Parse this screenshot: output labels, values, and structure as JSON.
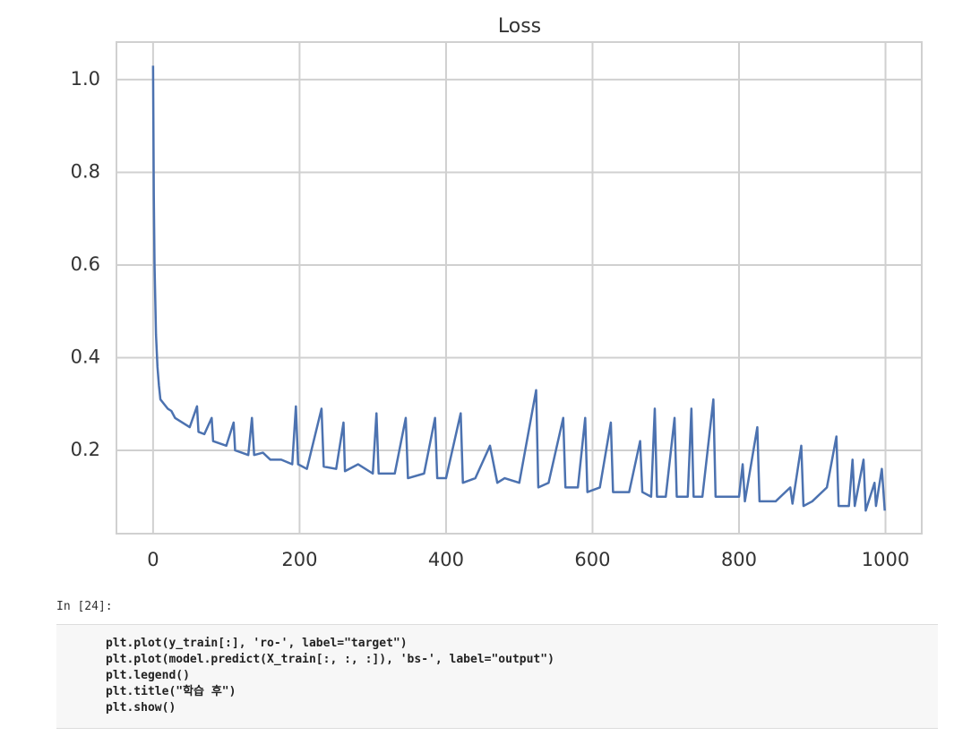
{
  "chart_data": {
    "type": "line",
    "title": "Loss",
    "x": [
      0,
      1,
      2,
      4,
      6,
      8,
      10,
      15,
      20,
      25,
      30,
      40,
      50,
      60,
      62,
      70,
      80,
      82,
      100,
      110,
      112,
      130,
      135,
      138,
      150,
      160,
      175,
      190,
      195,
      198,
      210,
      230,
      233,
      250,
      260,
      262,
      280,
      300,
      305,
      308,
      330,
      345,
      348,
      370,
      385,
      388,
      400,
      420,
      423,
      440,
      460,
      470,
      480,
      500,
      523,
      526,
      540,
      560,
      563,
      580,
      590,
      593,
      610,
      625,
      628,
      650,
      665,
      668,
      680,
      685,
      688,
      700,
      712,
      715,
      730,
      735,
      738,
      750,
      765,
      768,
      785,
      800,
      805,
      808,
      825,
      828,
      850,
      870,
      873,
      885,
      888,
      900,
      920,
      933,
      936,
      950,
      955,
      958,
      970,
      973,
      985,
      987,
      995,
      999
    ],
    "series": [
      {
        "color": "#4c72b0",
        "values": [
          1.03,
          0.75,
          0.6,
          0.45,
          0.38,
          0.34,
          0.31,
          0.3,
          0.29,
          0.285,
          0.27,
          0.26,
          0.25,
          0.295,
          0.24,
          0.235,
          0.27,
          0.22,
          0.21,
          0.26,
          0.2,
          0.19,
          0.27,
          0.19,
          0.195,
          0.18,
          0.18,
          0.17,
          0.295,
          0.17,
          0.16,
          0.29,
          0.165,
          0.16,
          0.26,
          0.155,
          0.17,
          0.15,
          0.28,
          0.15,
          0.15,
          0.27,
          0.14,
          0.15,
          0.27,
          0.14,
          0.14,
          0.28,
          0.13,
          0.14,
          0.21,
          0.13,
          0.14,
          0.13,
          0.33,
          0.12,
          0.13,
          0.27,
          0.12,
          0.12,
          0.27,
          0.11,
          0.12,
          0.26,
          0.11,
          0.11,
          0.22,
          0.11,
          0.1,
          0.29,
          0.1,
          0.1,
          0.27,
          0.1,
          0.1,
          0.29,
          0.1,
          0.1,
          0.31,
          0.1,
          0.1,
          0.1,
          0.17,
          0.09,
          0.25,
          0.09,
          0.09,
          0.12,
          0.085,
          0.21,
          0.08,
          0.09,
          0.12,
          0.23,
          0.08,
          0.08,
          0.18,
          0.08,
          0.18,
          0.07,
          0.13,
          0.08,
          0.16,
          0.07
        ]
      }
    ],
    "xlim": [
      -50,
      1049.5
    ],
    "xticks": [
      0,
      200,
      400,
      600,
      800,
      1000
    ],
    "ylim": [
      0.0203,
      1.081
    ],
    "yticks": [
      0.2,
      0.4,
      0.6,
      0.8,
      {
        "value": 1,
        "label": "1.0"
      }
    ],
    "grid": true
  },
  "notebook": {
    "prompt": "In [24]:",
    "code": [
      "plt.plot(y_train[:], 'ro-', label=\"target\")",
      "plt.plot(model.predict(X_train[:, :, :]), 'bs-', label=\"output\")",
      "plt.legend()",
      "plt.title(\"학습 후\")",
      "plt.show()"
    ]
  }
}
